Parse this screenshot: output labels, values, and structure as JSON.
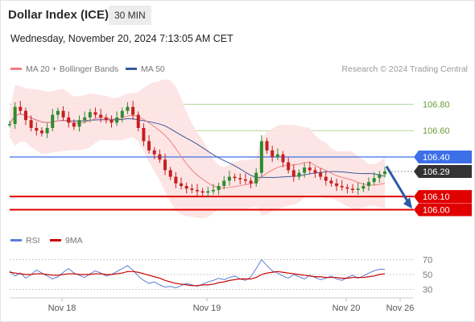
{
  "header": {
    "title": "Dollar Index (ICE)",
    "timeframe": "30 MIN",
    "datetime": "Wednesday, November 20, 2024 7:13:05 AM CET"
  },
  "legend": {
    "ma20_label": "MA 20 + Bollinger Bands",
    "ma50_label": "MA 50",
    "credit": "Research © 2024 Trading Central",
    "colors": {
      "ma20": "#f08080",
      "ma50": "#3b5a9a",
      "bands": "#fde2e2"
    }
  },
  "rsi_legend": {
    "rsi_label": "RSI",
    "ma_label": "9MA",
    "colors": {
      "rsi": "#5b7fd6",
      "ma": "#cc0000"
    }
  },
  "chart_data": [
    {
      "type": "line",
      "title": "",
      "ylim": [
        105.93,
        106.98
      ],
      "y_ticks": [
        106.8,
        106.6
      ],
      "y_tick_labels": [
        "106.80",
        "106.60"
      ],
      "x_labels": [
        "Nov 18",
        "Nov 19",
        "Nov 20",
        "Nov 26"
      ],
      "levels": [
        {
          "value": 106.4,
          "label": "106.40",
          "color": "#3d6fe8",
          "style": "resistance"
        },
        {
          "value": 106.29,
          "label": "106.29",
          "color": "#333333",
          "style": "last-price"
        },
        {
          "value": 106.1,
          "label": "106.10",
          "color": "#e00000",
          "style": "support"
        },
        {
          "value": 106.0,
          "label": "106.00",
          "color": "#e00000",
          "style": "support"
        }
      ],
      "forecast_arrow": {
        "from": 106.33,
        "to": 106.02,
        "color": "#2a5aa8"
      },
      "price_path": [
        106.65,
        106.78,
        106.75,
        106.68,
        106.62,
        106.6,
        106.58,
        106.62,
        106.72,
        106.75,
        106.7,
        106.66,
        106.63,
        106.68,
        106.7,
        106.74,
        106.72,
        106.7,
        106.68,
        106.66,
        106.7,
        106.75,
        106.78,
        106.72,
        106.62,
        106.52,
        106.45,
        106.42,
        106.38,
        106.3,
        106.25,
        106.2,
        106.18,
        106.16,
        106.15,
        106.14,
        106.13,
        106.14,
        106.15,
        106.18,
        106.22,
        106.25,
        106.24,
        106.23,
        106.22,
        106.2,
        106.28,
        106.52,
        106.45,
        106.4,
        106.42,
        106.36,
        106.3,
        106.25,
        106.28,
        106.32,
        106.3,
        106.28,
        106.25,
        106.22,
        106.2,
        106.18,
        106.17,
        106.16,
        106.15,
        106.16,
        106.18,
        106.21,
        106.24,
        106.27,
        106.29
      ]
    },
    {
      "type": "line",
      "title": "",
      "ylim": [
        25,
        75
      ],
      "y_ticks": [
        70,
        50,
        30
      ],
      "y_tick_labels": [
        "70",
        "50",
        "30"
      ],
      "rsi": [
        55,
        48,
        52,
        45,
        50,
        56,
        52,
        48,
        44,
        47,
        53,
        58,
        52,
        49,
        46,
        51,
        55,
        52,
        48,
        50,
        54,
        58,
        62,
        56,
        48,
        42,
        38,
        40,
        36,
        33,
        34,
        32,
        35,
        38,
        36,
        34,
        37,
        40,
        42,
        45,
        43,
        46,
        48,
        44,
        42,
        47,
        58,
        70,
        62,
        55,
        52,
        48,
        45,
        50,
        47,
        44,
        49,
        46,
        43,
        45,
        48,
        44,
        42,
        46,
        49,
        45,
        48,
        52,
        55,
        57,
        57
      ],
      "ma": [
        53,
        52,
        51,
        50,
        50,
        51,
        51,
        50,
        49,
        49,
        50,
        51,
        51,
        50,
        50,
        50,
        51,
        51,
        50,
        50,
        51,
        52,
        54,
        54,
        53,
        51,
        49,
        47,
        45,
        42,
        40,
        38,
        37,
        36,
        35,
        35,
        36,
        36,
        37,
        39,
        40,
        42,
        43,
        44,
        44,
        44,
        46,
        50,
        52,
        53,
        54,
        53,
        52,
        51,
        50,
        49,
        48,
        47,
        47,
        46,
        46,
        46,
        45,
        45,
        46,
        46,
        46,
        47,
        48,
        50,
        51
      ]
    }
  ]
}
